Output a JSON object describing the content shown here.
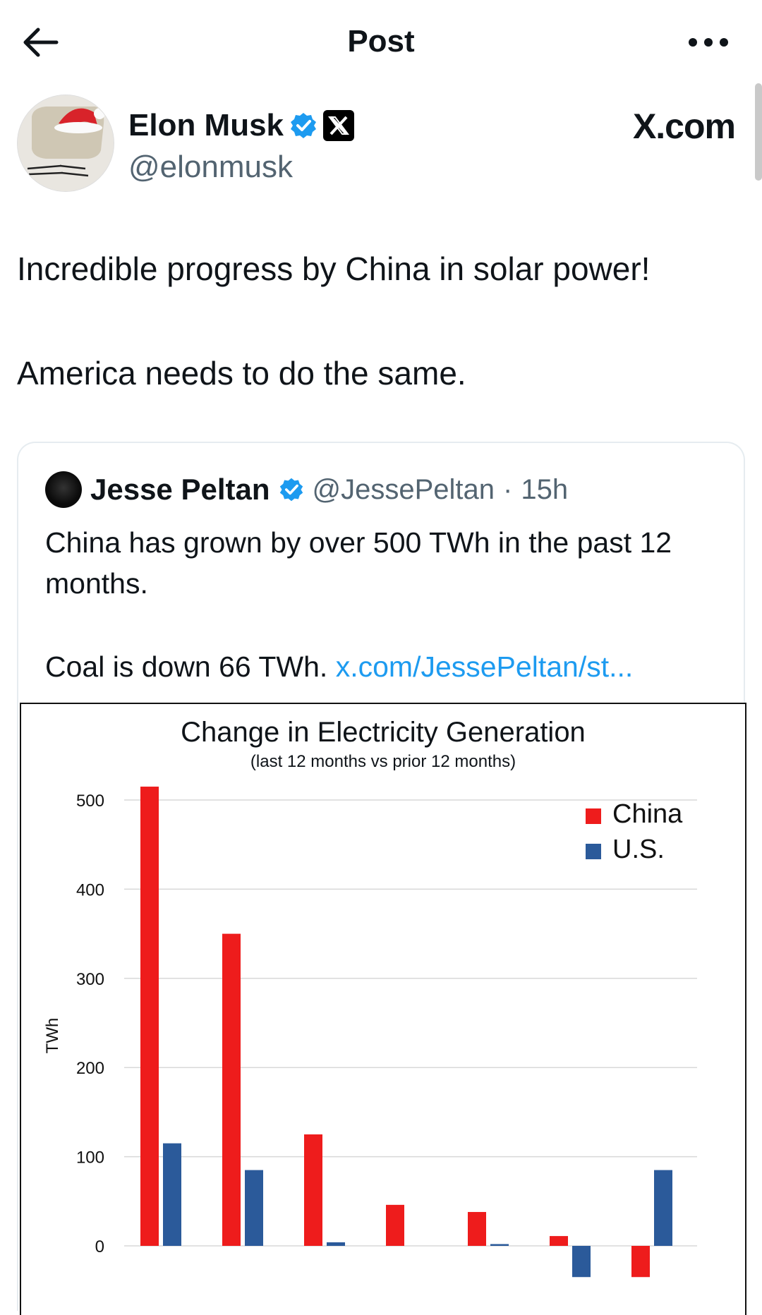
{
  "header": {
    "title": "Post"
  },
  "author": {
    "name": "Elon Musk",
    "handle": "@elonmusk",
    "site": "X.com"
  },
  "post": {
    "line1": "Incredible progress by China in solar power!",
    "line2": "America needs to do the same."
  },
  "quote": {
    "name": "Jesse Peltan",
    "handle": "@JessePeltan",
    "separator": "·",
    "time": "15h",
    "text1": "China has grown by over 500 TWh in the past 12 months.",
    "text2": "Coal is down 66 TWh.",
    "link": "x.com/JessePeltan/st..."
  },
  "chart_data": {
    "type": "bar",
    "title": "Change in Electricity Generation",
    "subtitle": "(last 12 months vs prior 12 months)",
    "ylabel": "TWh",
    "ylim": [
      0,
      500
    ],
    "yticks": [
      0,
      100,
      200,
      300,
      400,
      500
    ],
    "grid": true,
    "legend_position": "top-right",
    "categories": [
      "",
      "",
      "",
      "",
      "",
      "",
      ""
    ],
    "series": [
      {
        "name": "China",
        "color": "#ee1c1c",
        "values": [
          515,
          350,
          125,
          46,
          38,
          11,
          -35
        ]
      },
      {
        "name": "U.S.",
        "color": "#2b5a9a",
        "values": [
          115,
          85,
          4,
          0,
          2,
          -35,
          85
        ]
      }
    ]
  },
  "colors": {
    "verified": "#1d9bf0",
    "link": "#1d9bf0",
    "muted": "#536471"
  }
}
